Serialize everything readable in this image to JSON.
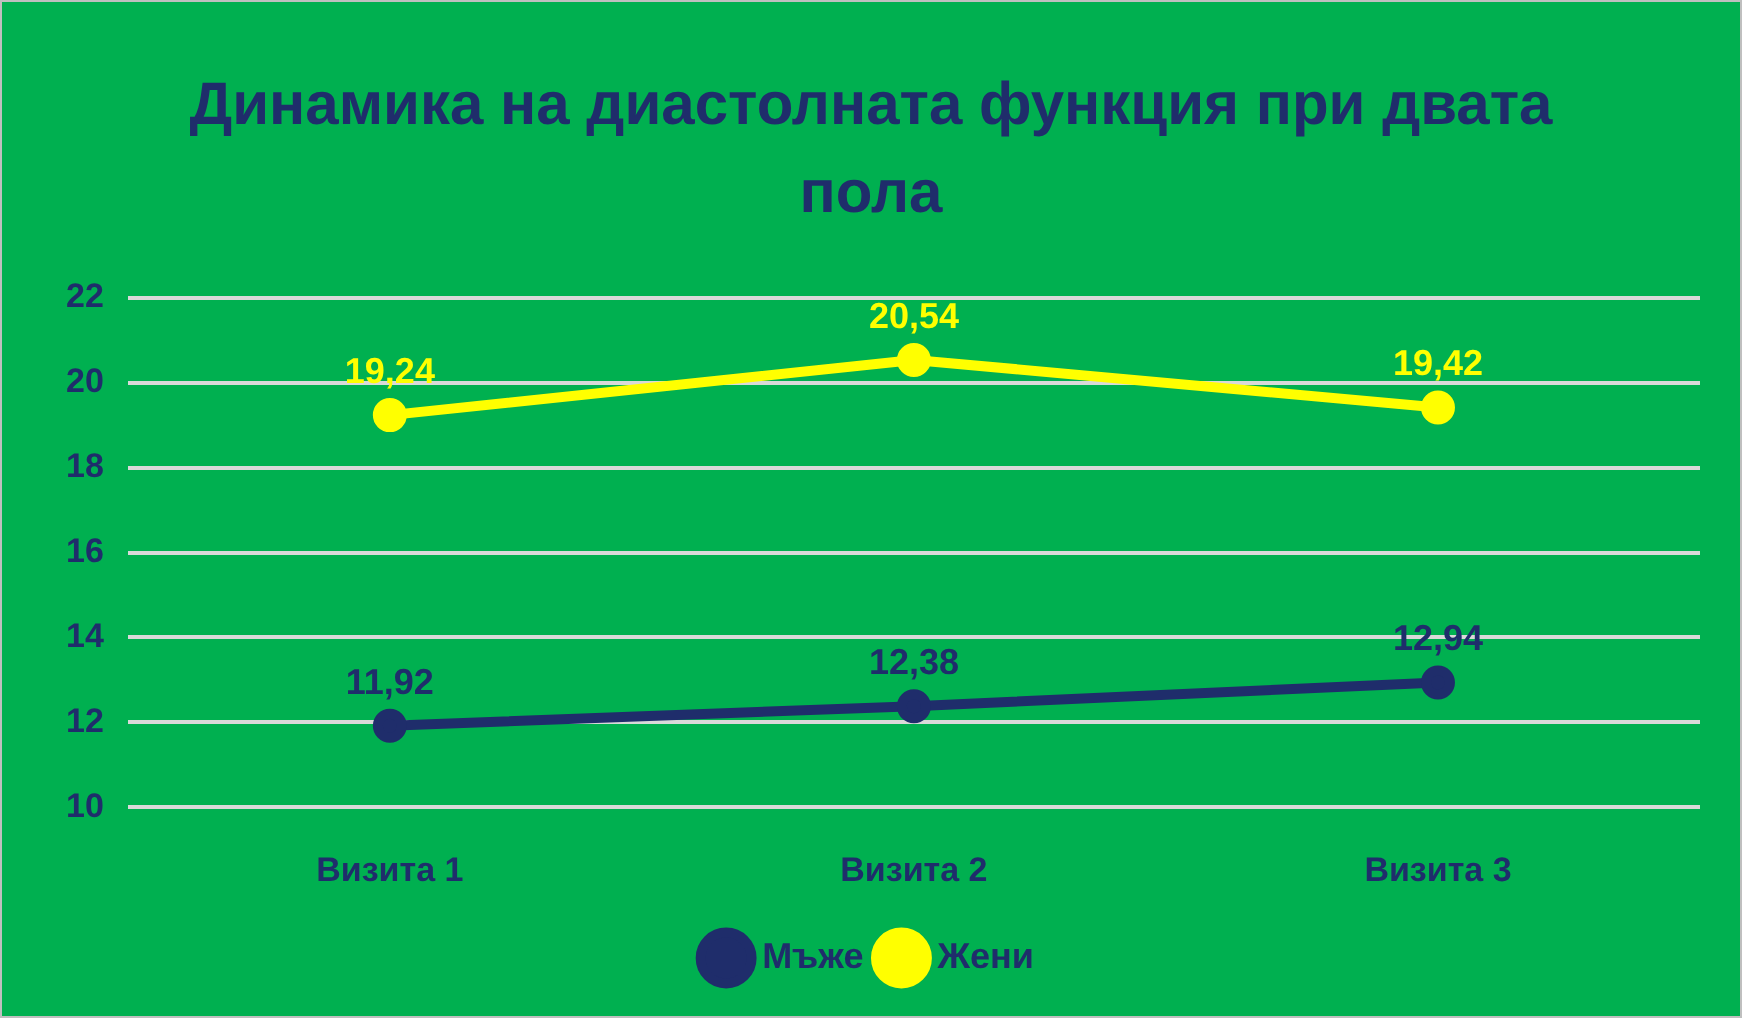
{
  "chart_data": {
    "type": "line",
    "title": "Динамика на диастолната функция при двата пола",
    "categories": [
      "Визита 1",
      "Визита 2",
      "Визита 3"
    ],
    "series": [
      {
        "name": "Мъже",
        "color": "#1f2d6b",
        "values": [
          11.92,
          12.38,
          12.94
        ],
        "value_labels": [
          "11,92",
          "12,38",
          "12,94"
        ]
      },
      {
        "name": "Жени",
        "color": "#ffff00",
        "values": [
          19.24,
          20.54,
          19.42
        ],
        "value_labels": [
          "19,24",
          "20,54",
          "19,42"
        ]
      }
    ],
    "ylim": [
      10,
      22
    ],
    "yticks": [
      10,
      12,
      14,
      16,
      18,
      20,
      22
    ],
    "grid": "y",
    "legend": "bottom",
    "marker": "circle",
    "line_style": "solid"
  }
}
